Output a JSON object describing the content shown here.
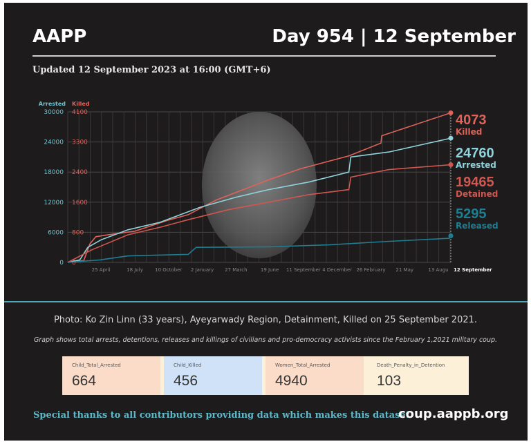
{
  "header": {
    "brand": "AAPP",
    "day": "Day 954 | 12 September",
    "updated": "Updated 12 September 2023 at 16:00 (GMT+6)"
  },
  "chart_data": {
    "type": "line",
    "x_unit": "days since 1 February 2021",
    "left_axis": {
      "label": "Arrested",
      "ticks": [
        0,
        6000,
        12000,
        18000,
        24000,
        30000
      ],
      "range": [
        0,
        30000
      ]
    },
    "right_axis": {
      "label": "Killed",
      "ticks": [
        0,
        800,
        1600,
        2400,
        3300,
        4100
      ],
      "range": [
        0,
        4100
      ]
    },
    "x_ticks": [
      {
        "day": 83,
        "label": "25 April"
      },
      {
        "day": 167,
        "label": "18 July"
      },
      {
        "day": 251,
        "label": "10 October"
      },
      {
        "day": 335,
        "label": "2 January"
      },
      {
        "day": 419,
        "label": "27 March"
      },
      {
        "day": 503,
        "label": "19 June"
      },
      {
        "day": 587,
        "label": "11 September"
      },
      {
        "day": 671,
        "label": "4 December"
      },
      {
        "day": 755,
        "label": "26 February"
      },
      {
        "day": 839,
        "label": "21 May"
      },
      {
        "day": 923,
        "label": "13 Augu"
      },
      {
        "day": 954,
        "label": "12 September"
      }
    ],
    "series": [
      {
        "name": "Killed",
        "axis": "killed",
        "color": "#e0635a",
        "final": "4073",
        "points": [
          [
            0,
            0
          ],
          [
            40,
            50
          ],
          [
            55,
            500
          ],
          [
            70,
            700
          ],
          [
            100,
            750
          ],
          [
            167,
            850
          ],
          [
            250,
            1150
          ],
          [
            300,
            1300
          ],
          [
            370,
            1700
          ],
          [
            430,
            1950
          ],
          [
            500,
            2250
          ],
          [
            580,
            2550
          ],
          [
            700,
            2900
          ],
          [
            780,
            3250
          ],
          [
            782,
            3450
          ],
          [
            954,
            4073
          ]
        ]
      },
      {
        "name": "Arrested",
        "axis": "arrested",
        "color": "#8fd3dc",
        "final": "24760",
        "points": [
          [
            0,
            0
          ],
          [
            30,
            500
          ],
          [
            50,
            3000
          ],
          [
            83,
            4500
          ],
          [
            150,
            6500
          ],
          [
            230,
            8000
          ],
          [
            280,
            9500
          ],
          [
            330,
            11000
          ],
          [
            420,
            13000
          ],
          [
            500,
            14500
          ],
          [
            600,
            16000
          ],
          [
            700,
            18000
          ],
          [
            705,
            21000
          ],
          [
            800,
            22000
          ],
          [
            954,
            24760
          ]
        ]
      },
      {
        "name": "Detained",
        "axis": "arrested",
        "color": "#d0574f",
        "final": "19465",
        "points": [
          [
            0,
            0
          ],
          [
            60,
            2500
          ],
          [
            150,
            5500
          ],
          [
            230,
            7000
          ],
          [
            300,
            8500
          ],
          [
            400,
            10500
          ],
          [
            500,
            12000
          ],
          [
            600,
            13500
          ],
          [
            700,
            14500
          ],
          [
            705,
            17000
          ],
          [
            800,
            18500
          ],
          [
            954,
            19465
          ]
        ]
      },
      {
        "name": "Released",
        "axis": "arrested",
        "color": "#1e7f92",
        "final": "5295",
        "points": [
          [
            0,
            0
          ],
          [
            80,
            500
          ],
          [
            150,
            1300
          ],
          [
            300,
            1600
          ],
          [
            320,
            3000
          ],
          [
            500,
            3100
          ],
          [
            650,
            3500
          ],
          [
            800,
            4200
          ],
          [
            950,
            4800
          ],
          [
            954,
            5295
          ]
        ]
      }
    ],
    "x_range": [
      0,
      954
    ]
  },
  "caption": "Photo: Ko Zin Linn (33 years), Ayeyarwady Region, Detainment, Killed on 25 September 2021.",
  "note": "Graph shows total arrests, detentions, releases and killings of civilians and pro-democracy activists since the February 1,2021 military coup.",
  "cards": [
    {
      "label": "Child_Total_Arrested",
      "value": "664",
      "color": "#fbdcc8"
    },
    {
      "label": "Child_Killed",
      "value": "456",
      "color": "#cfe2f8"
    },
    {
      "label": "Women_Total_Arrested",
      "value": "4940",
      "color": "#fbdcc8"
    },
    {
      "label": "Death_Penalty_in_Detention",
      "value": "103",
      "color": "#fdf0d8"
    }
  ],
  "footer": {
    "thanks": "Special thanks to all contributors providing data which makes this dataset.",
    "site": "coup.aappb.org"
  }
}
